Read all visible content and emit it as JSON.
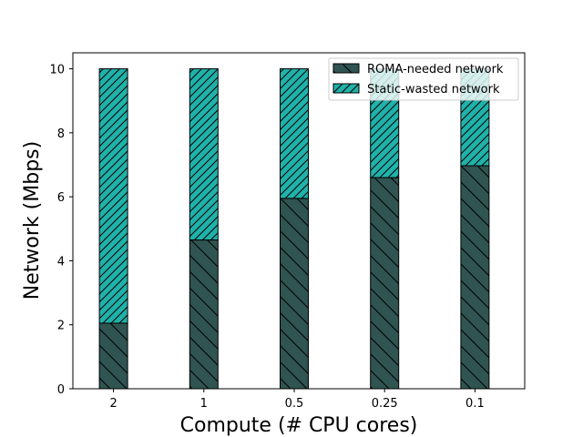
{
  "chart_data": {
    "type": "bar",
    "stacked": true,
    "title": "",
    "xlabel": "Compute (# CPU cores)",
    "ylabel": "Network (Mbps)",
    "categories": [
      "2",
      "1",
      "0.5",
      "0.25",
      "0.1"
    ],
    "ylim": [
      0,
      10.5
    ],
    "yticks": [
      0,
      2,
      4,
      6,
      8,
      10
    ],
    "grid": false,
    "legend_position": "top-right",
    "series": [
      {
        "name": "ROMA-needed network",
        "values": [
          2.05,
          4.65,
          5.95,
          6.6,
          6.97
        ],
        "color": "#2f5451",
        "hatch": "backslash"
      },
      {
        "name": "Static-wasted network",
        "values": [
          7.95,
          5.35,
          4.05,
          3.4,
          3.03
        ],
        "color": "#20b2aa",
        "hatch": "slash"
      }
    ]
  }
}
